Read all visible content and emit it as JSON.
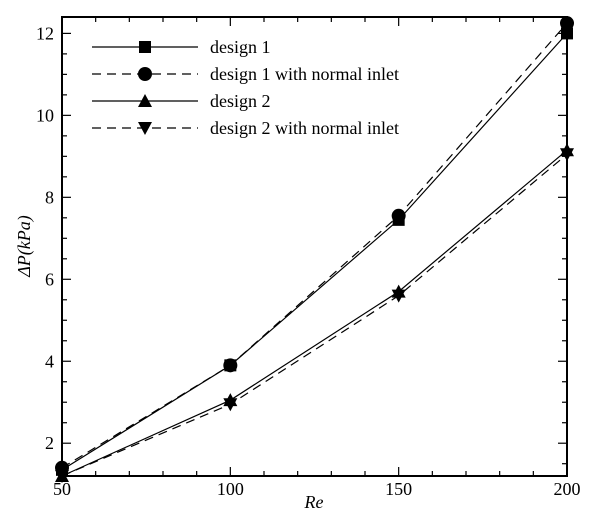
{
  "chart_data": {
    "type": "line",
    "title": "",
    "xlabel": "Re",
    "ylabel": "ΔP(kPa)",
    "xlim": [
      50,
      200
    ],
    "ylim": [
      1.2,
      12.4
    ],
    "x_ticks": [
      50,
      100,
      150,
      200
    ],
    "y_ticks": [
      2,
      4,
      6,
      8,
      10,
      12
    ],
    "x_tick_labels": [
      "50",
      "100",
      "150",
      "200"
    ],
    "y_tick_labels": [
      "2",
      "4",
      "6",
      "8",
      "10",
      "12"
    ],
    "grid": false,
    "legend_position": "top-left",
    "series": [
      {
        "name": "design 1",
        "marker": "square",
        "line_style": "solid",
        "x": [
          50,
          100,
          150,
          200
        ],
        "y": [
          1.35,
          3.9,
          7.45,
          12.0
        ]
      },
      {
        "name": "design 1 with normal inlet",
        "marker": "circle",
        "line_style": "dashed",
        "x": [
          50,
          100,
          150,
          200
        ],
        "y": [
          1.4,
          3.9,
          7.55,
          12.25
        ]
      },
      {
        "name": "design 2",
        "marker": "triangle-up",
        "line_style": "solid",
        "x": [
          50,
          100,
          150,
          200
        ],
        "y": [
          1.2,
          3.05,
          5.7,
          9.15
        ]
      },
      {
        "name": "design 2 with normal inlet",
        "marker": "triangle-down",
        "line_style": "dashed",
        "x": [
          50,
          100,
          150,
          200
        ],
        "y": [
          1.2,
          2.95,
          5.6,
          9.05
        ]
      }
    ]
  }
}
